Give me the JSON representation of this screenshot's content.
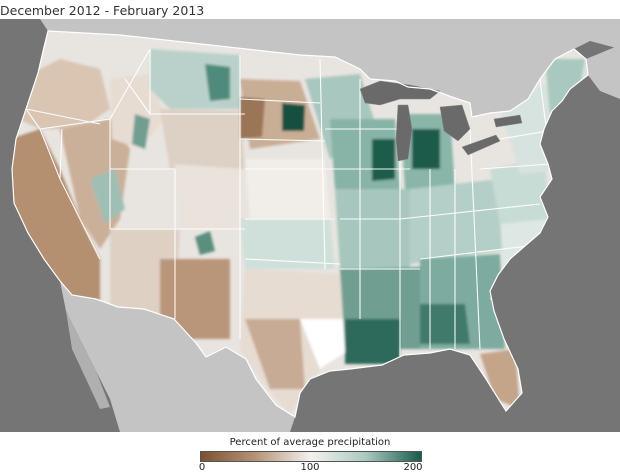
{
  "title": "December 2012 - February 2013",
  "legend": {
    "title": "Percent of average precipitation",
    "ticks": [
      "0",
      "100",
      "200"
    ],
    "colors": [
      "#7d5230",
      "#b59478",
      "#f4f1ee",
      "#a9c9c0",
      "#1a5c4c"
    ]
  },
  "map": {
    "ocean_color": "#757575",
    "land_color": "#c8c8c8",
    "lakes_color": "#6e6e6e"
  }
}
